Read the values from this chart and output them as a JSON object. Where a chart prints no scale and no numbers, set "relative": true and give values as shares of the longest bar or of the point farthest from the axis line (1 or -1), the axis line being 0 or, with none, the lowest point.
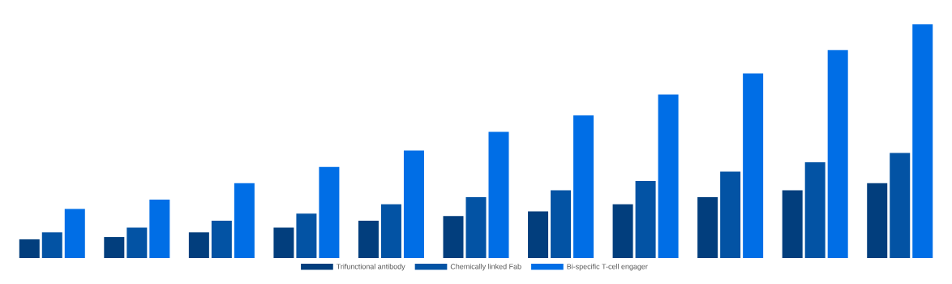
{
  "chart_data": {
    "type": "bar",
    "relative": true,
    "legend": "bottom",
    "categories": [
      null,
      null,
      null,
      null,
      null,
      null,
      null,
      null,
      null,
      null,
      null
    ],
    "series": [
      {
        "name": "Trifunctional antibody",
        "color": "#023e7d",
        "values": [
          0.08,
          0.09,
          0.11,
          0.13,
          0.16,
          0.18,
          0.2,
          0.23,
          0.26,
          0.29,
          0.32
        ]
      },
      {
        "name": "Chemically linked Fab",
        "color": "#0353a4",
        "values": [
          0.11,
          0.13,
          0.16,
          0.19,
          0.23,
          0.26,
          0.29,
          0.33,
          0.37,
          0.41,
          0.45
        ]
      },
      {
        "name": "Bi-specific T-cell engager",
        "color": "#006ee6",
        "values": [
          0.21,
          0.25,
          0.32,
          0.39,
          0.46,
          0.54,
          0.61,
          0.7,
          0.79,
          0.89,
          1
        ]
      }
    ]
  }
}
